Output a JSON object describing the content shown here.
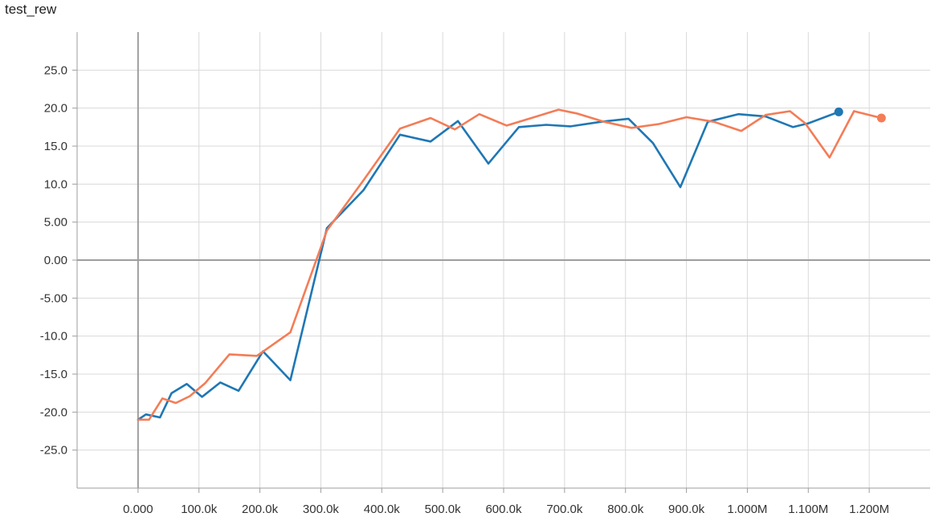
{
  "chart_data": {
    "type": "line",
    "title": "test_rew",
    "x_range": [
      -100000,
      1300000
    ],
    "y_range": [
      -30,
      30
    ],
    "x_ticks": [
      0,
      100000,
      200000,
      300000,
      400000,
      500000,
      600000,
      700000,
      800000,
      900000,
      1000000,
      1100000,
      1200000
    ],
    "x_tick_labels": [
      "0.000",
      "100.0k",
      "200.0k",
      "300.0k",
      "400.0k",
      "500.0k",
      "600.0k",
      "700.0k",
      "800.0k",
      "900.0k",
      "1.000M",
      "1.100M",
      "1.200M"
    ],
    "y_ticks": [
      25,
      20,
      15,
      10,
      5,
      0,
      -5,
      -10,
      -15,
      -20,
      -25
    ],
    "y_tick_labels": [
      "25.0",
      "20.0",
      "15.0",
      "10.0",
      "5.00",
      "0.00",
      "-5.00",
      "-10.0",
      "-15.0",
      "-20.0",
      "-25.0"
    ],
    "grid": true,
    "series": [
      {
        "color": "#1f77b4",
        "x": [
          0,
          13000,
          36000,
          55000,
          80000,
          105000,
          135000,
          165000,
          205000,
          250000,
          310000,
          370000,
          430000,
          480000,
          525000,
          575000,
          625000,
          670000,
          710000,
          760000,
          805000,
          845000,
          890000,
          935000,
          985000,
          1030000,
          1075000,
          1100000,
          1150000
        ],
        "y": [
          -21.0,
          -20.3,
          -20.7,
          -17.5,
          -16.3,
          -18.0,
          -16.1,
          -17.2,
          -12.0,
          -15.8,
          4.2,
          9.2,
          16.5,
          15.6,
          18.3,
          12.7,
          17.5,
          17.8,
          17.6,
          18.2,
          18.6,
          15.4,
          9.6,
          18.2,
          19.2,
          18.9,
          17.5,
          18.0,
          19.5
        ]
      },
      {
        "color": "#f47c56",
        "x": [
          0,
          18000,
          40000,
          62000,
          85000,
          110000,
          150000,
          195000,
          250000,
          310000,
          370000,
          430000,
          480000,
          520000,
          560000,
          605000,
          650000,
          690000,
          720000,
          765000,
          810000,
          855000,
          900000,
          945000,
          990000,
          1030000,
          1070000,
          1095000,
          1135000,
          1175000,
          1220000
        ],
        "y": [
          -21.0,
          -21.0,
          -18.2,
          -18.8,
          -17.9,
          -16.2,
          -12.4,
          -12.6,
          -9.5,
          3.9,
          10.5,
          17.3,
          18.7,
          17.2,
          19.2,
          17.7,
          18.8,
          19.8,
          19.3,
          18.2,
          17.4,
          17.9,
          18.8,
          18.2,
          17.0,
          19.1,
          19.6,
          18.0,
          13.5,
          19.6,
          18.7
        ]
      }
    ]
  }
}
